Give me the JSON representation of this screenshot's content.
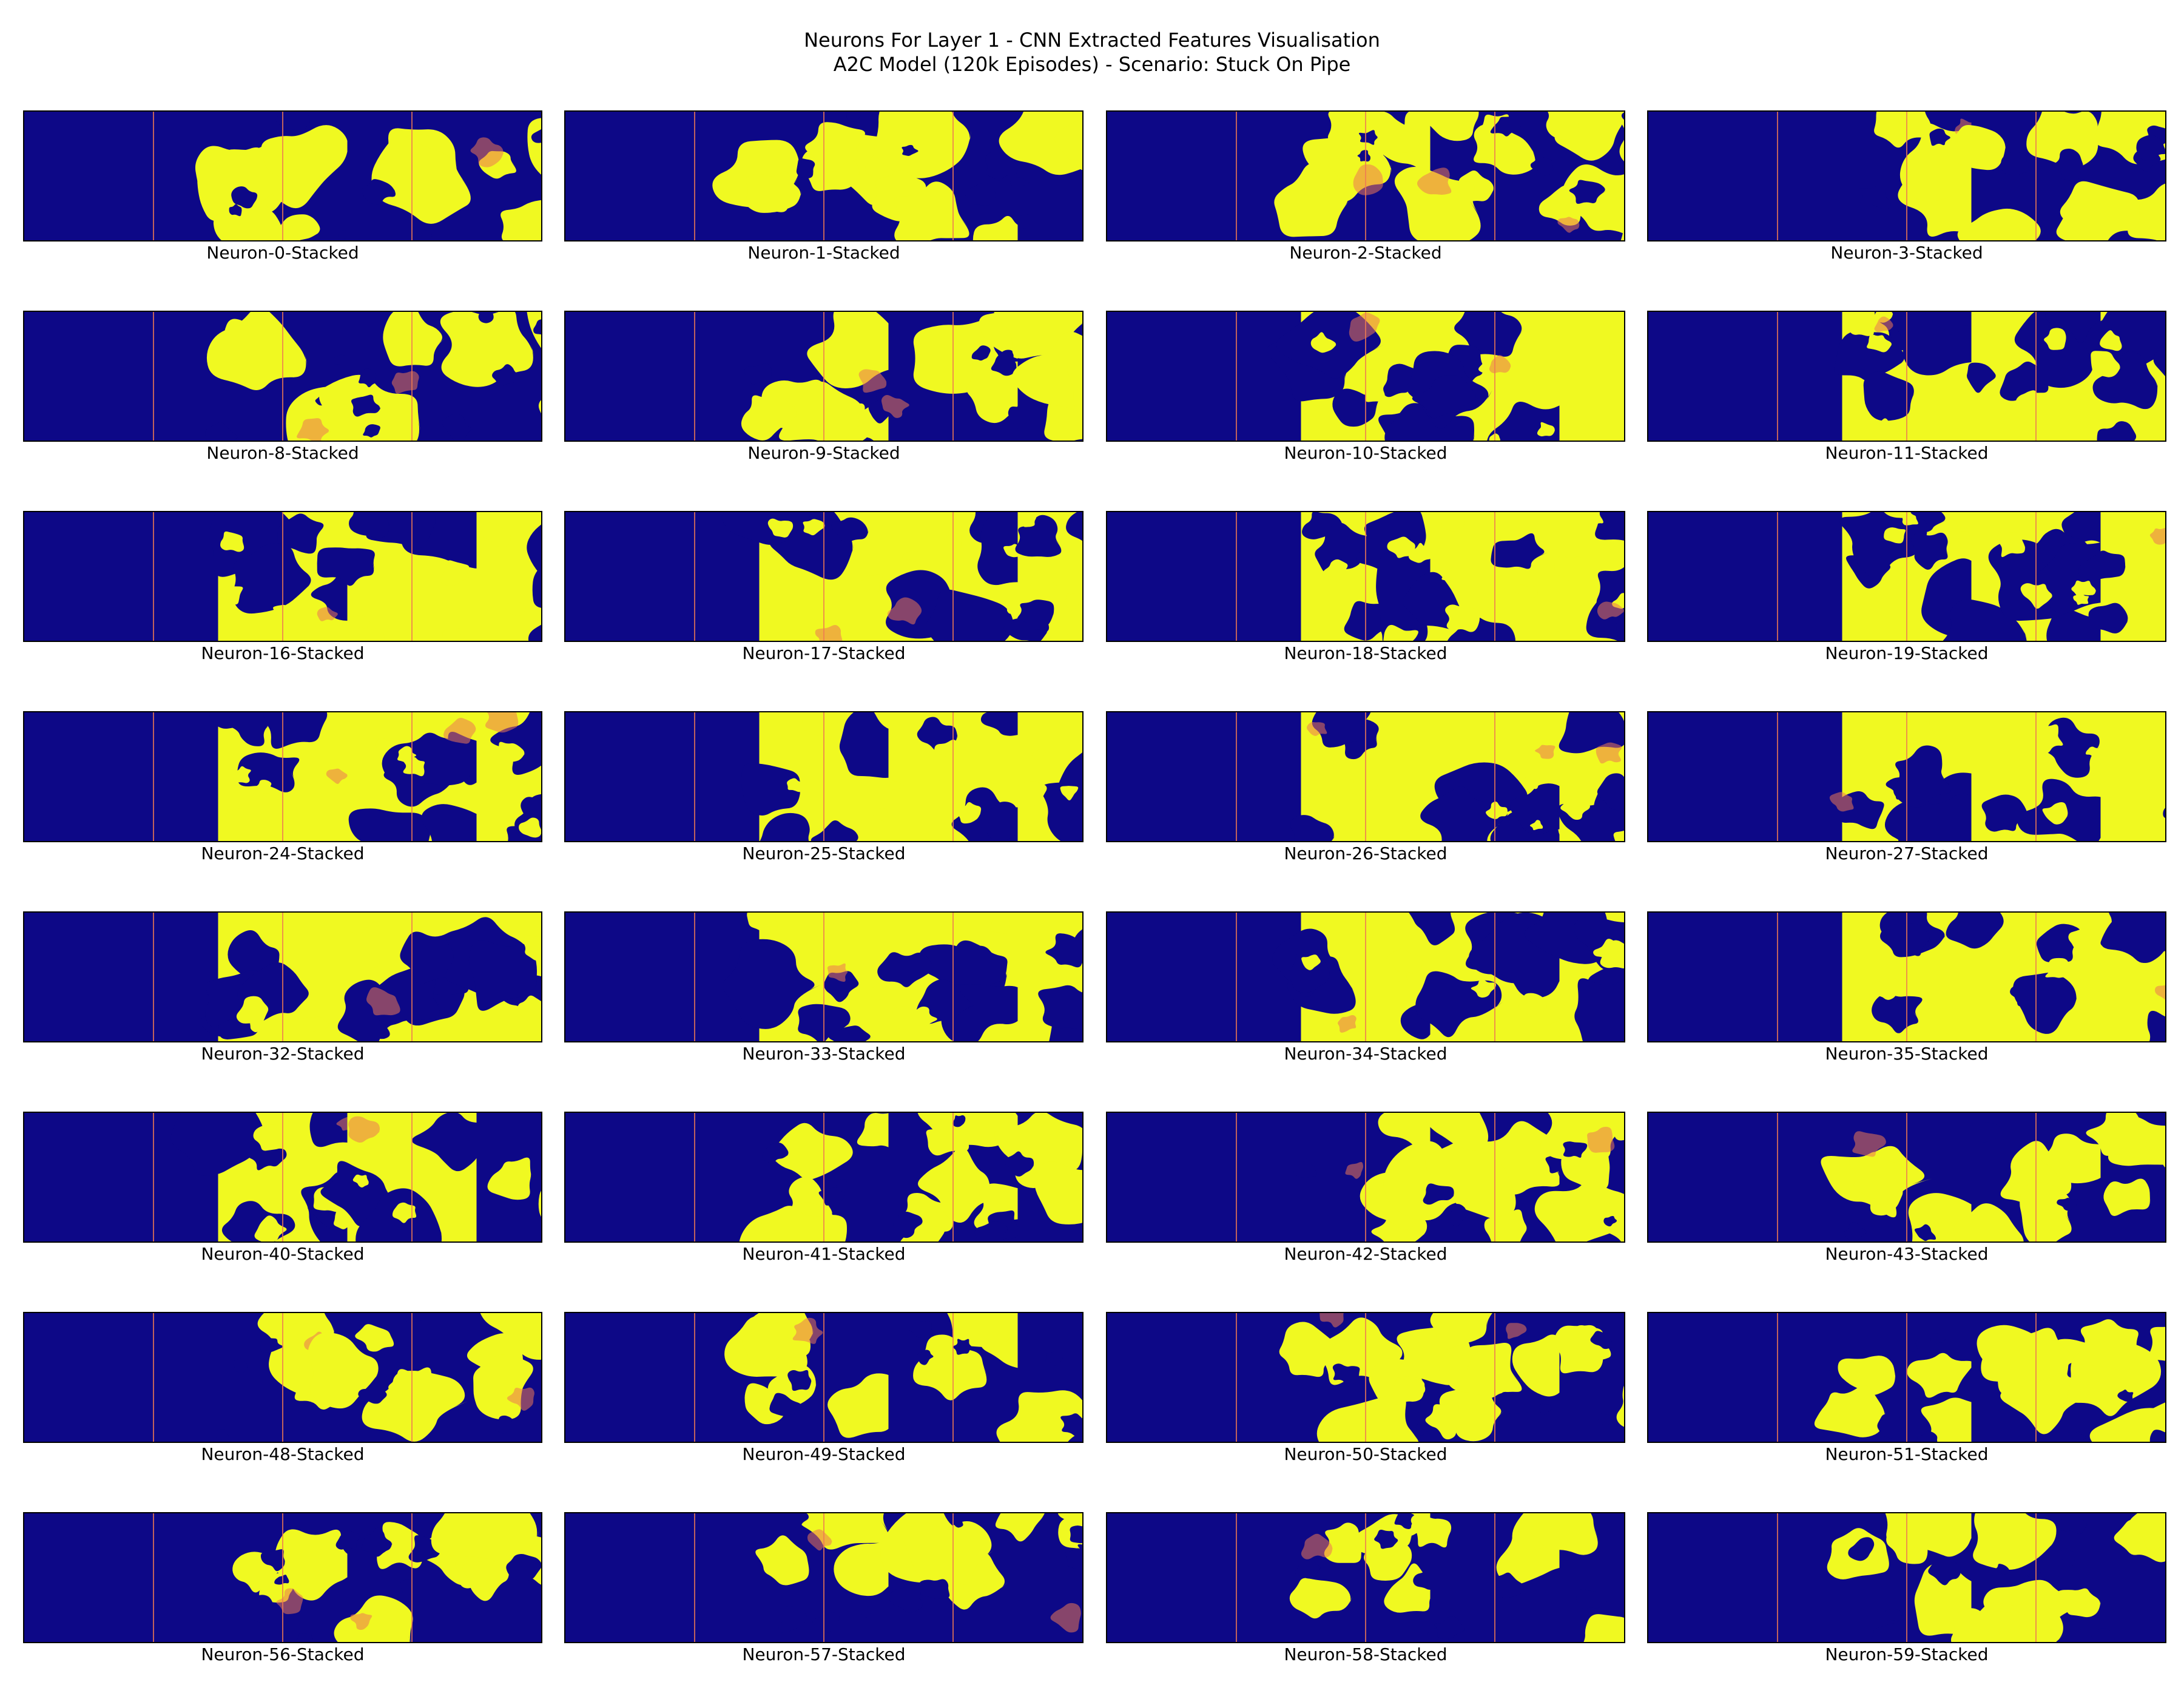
{
  "title": {
    "line1": "Neurons For Layer 1 - CNN Extracted Features Visualisation",
    "line2": "A2C Model (120k Episodes) - Scenario: Stuck On Pipe"
  },
  "colormap": {
    "low": "#0d0887",
    "mid": "#9c179e",
    "high_mid": "#ed7953",
    "high": "#f0f921"
  },
  "panels": [
    {
      "label": "Neuron-0-Stacked"
    },
    {
      "label": "Neuron-1-Stacked"
    },
    {
      "label": "Neuron-2-Stacked"
    },
    {
      "label": "Neuron-3-Stacked"
    },
    {
      "label": "Neuron-8-Stacked"
    },
    {
      "label": "Neuron-9-Stacked"
    },
    {
      "label": "Neuron-10-Stacked"
    },
    {
      "label": "Neuron-11-Stacked"
    },
    {
      "label": "Neuron-16-Stacked"
    },
    {
      "label": "Neuron-17-Stacked"
    },
    {
      "label": "Neuron-18-Stacked"
    },
    {
      "label": "Neuron-19-Stacked"
    },
    {
      "label": "Neuron-24-Stacked"
    },
    {
      "label": "Neuron-25-Stacked"
    },
    {
      "label": "Neuron-26-Stacked"
    },
    {
      "label": "Neuron-27-Stacked"
    },
    {
      "label": "Neuron-32-Stacked"
    },
    {
      "label": "Neuron-33-Stacked"
    },
    {
      "label": "Neuron-34-Stacked"
    },
    {
      "label": "Neuron-35-Stacked"
    },
    {
      "label": "Neuron-40-Stacked"
    },
    {
      "label": "Neuron-41-Stacked"
    },
    {
      "label": "Neuron-42-Stacked"
    },
    {
      "label": "Neuron-43-Stacked"
    },
    {
      "label": "Neuron-48-Stacked"
    },
    {
      "label": "Neuron-49-Stacked"
    },
    {
      "label": "Neuron-50-Stacked"
    },
    {
      "label": "Neuron-51-Stacked"
    },
    {
      "label": "Neuron-56-Stacked"
    },
    {
      "label": "Neuron-57-Stacked"
    },
    {
      "label": "Neuron-58-Stacked"
    },
    {
      "label": "Neuron-59-Stacked"
    }
  ]
}
